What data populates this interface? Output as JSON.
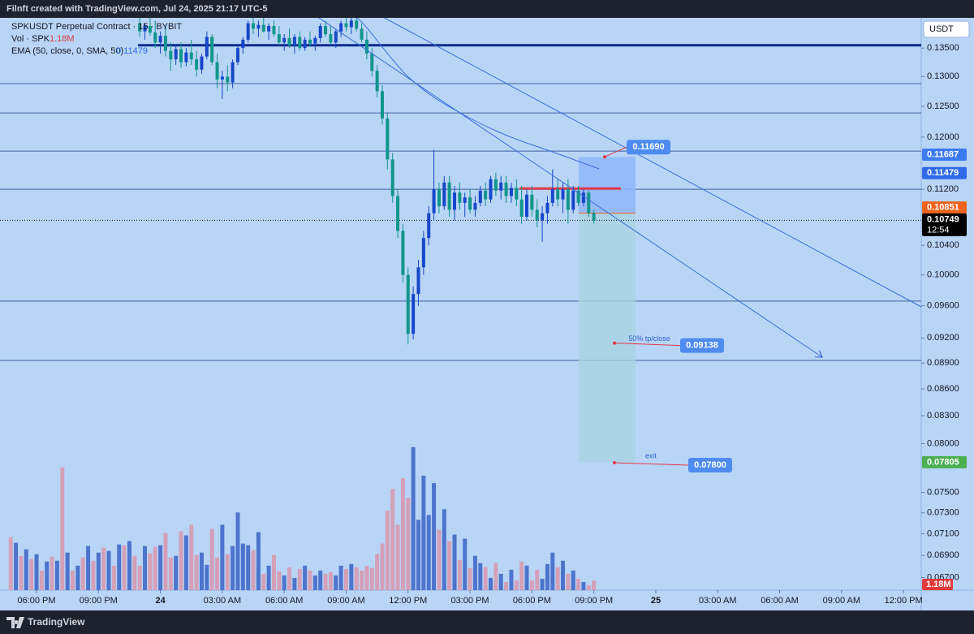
{
  "header": "Filnft created with TradingView.com, Jul 24, 2025 21:17 UTC-5",
  "chart_data": {
    "type": "candlestick",
    "title": "SPKUSDT Perpetual Contract · 15 · BYBIT",
    "legend": {
      "volume_label": "Vol · SPK",
      "volume_value": "1.18M",
      "ema_label": "EMA (50, close, 0, SMA, 50)"
    },
    "currency": "USDT",
    "log_scale": true,
    "x": [
      -1.25,
      -1,
      -0.75,
      -0.5,
      -0.25,
      0,
      0.25,
      0.5,
      0.75,
      1,
      1.25,
      1.5,
      1.75,
      2,
      2.25,
      2.5,
      2.75,
      3,
      3.25,
      3.5,
      3.75,
      4,
      4.25,
      4.5,
      4.75,
      5,
      5.25,
      5.5,
      5.75,
      6,
      6.25,
      6.5,
      6.75,
      7,
      7.25,
      7.5,
      7.75,
      8,
      8.25,
      8.5,
      8.75,
      9,
      9.25,
      9.5,
      9.75,
      10,
      10.25,
      10.5,
      10.75,
      11,
      11.25,
      11.5,
      11.75,
      12,
      12.25,
      12.5,
      12.75,
      13,
      13.25,
      13.5,
      13.75,
      14,
      14.25,
      14.5,
      14.75,
      15,
      15.25,
      15.5,
      15.75,
      16,
      16.25,
      16.5,
      16.75,
      17,
      17.25,
      17.5,
      17.75,
      18,
      18.25,
      18.5,
      18.75,
      19,
      19.25,
      19.5,
      19.75,
      20,
      20.25,
      20.5,
      20.75,
      21,
      21.25,
      21.5,
      21.75,
      22,
      22.25,
      22.5,
      22.75,
      23,
      23.25,
      23.5,
      23.75,
      24,
      24.25,
      24.5,
      24.75,
      25,
      25.25,
      25.5,
      25.75,
      26,
      26.25,
      26.5,
      26.75,
      27
    ],
    "ohlc": [
      null,
      null,
      null,
      null,
      null,
      null,
      null,
      null,
      null,
      null,
      null,
      null,
      null,
      null,
      null,
      null,
      null,
      null,
      null,
      null,
      null,
      null,
      null,
      null,
      null,
      [
        0.1395,
        0.141,
        0.137,
        0.138
      ],
      [
        0.138,
        0.1395,
        0.1365,
        0.139
      ],
      [
        0.139,
        0.1405,
        0.1372,
        0.1378
      ],
      [
        0.1378,
        0.14,
        0.135,
        0.136
      ],
      [
        0.136,
        0.138,
        0.134,
        0.1372
      ],
      [
        0.1372,
        0.139,
        0.1335,
        0.1345
      ],
      [
        0.1345,
        0.136,
        0.131,
        0.133
      ],
      [
        0.133,
        0.1355,
        0.132,
        0.1348
      ],
      [
        0.1348,
        0.136,
        0.1315,
        0.1325
      ],
      [
        0.1325,
        0.135,
        0.1318,
        0.1342
      ],
      [
        0.1342,
        0.1365,
        0.132,
        0.133
      ],
      [
        0.133,
        0.1345,
        0.13,
        0.1312
      ],
      [
        0.1312,
        0.134,
        0.1305,
        0.1335
      ],
      [
        0.1335,
        0.138,
        0.133,
        0.137
      ],
      [
        0.137,
        0.1375,
        0.132,
        0.1325
      ],
      [
        0.1325,
        0.134,
        0.128,
        0.1295
      ],
      [
        0.1295,
        0.131,
        0.1262,
        0.13
      ],
      [
        0.13,
        0.132,
        0.1275,
        0.129
      ],
      [
        0.129,
        0.133,
        0.128,
        0.1325
      ],
      [
        0.1325,
        0.1355,
        0.132,
        0.135
      ],
      [
        0.135,
        0.137,
        0.134,
        0.1365
      ],
      [
        0.1365,
        0.14,
        0.136,
        0.1395
      ],
      [
        0.1395,
        0.141,
        0.1375,
        0.1385
      ],
      [
        0.1385,
        0.14,
        0.137,
        0.1392
      ],
      [
        0.1392,
        0.1405,
        0.1378,
        0.138
      ],
      [
        0.138,
        0.1395,
        0.1365,
        0.139
      ],
      [
        0.139,
        0.14,
        0.137,
        0.1375
      ],
      [
        0.1375,
        0.139,
        0.1355,
        0.136
      ],
      [
        0.136,
        0.1375,
        0.1345,
        0.1368
      ],
      [
        0.1368,
        0.1385,
        0.135,
        0.1355
      ],
      [
        0.1355,
        0.1375,
        0.134,
        0.137
      ],
      [
        0.137,
        0.138,
        0.1345,
        0.135
      ],
      [
        0.135,
        0.137,
        0.1345,
        0.1365
      ],
      [
        0.1365,
        0.138,
        0.1352,
        0.1358
      ],
      [
        0.1358,
        0.1372,
        0.1345,
        0.1368
      ],
      [
        0.1368,
        0.1395,
        0.136,
        0.139
      ],
      [
        0.139,
        0.14,
        0.137,
        0.1375
      ],
      [
        0.1375,
        0.139,
        0.1355,
        0.136
      ],
      [
        0.136,
        0.1385,
        0.135,
        0.138
      ],
      [
        0.138,
        0.14,
        0.137,
        0.1395
      ],
      [
        0.1395,
        0.141,
        0.138,
        0.1388
      ],
      [
        0.1388,
        0.1408,
        0.1375,
        0.14
      ],
      [
        0.14,
        0.141,
        0.138,
        0.1385
      ],
      [
        0.1385,
        0.1395,
        0.136,
        0.1365
      ],
      [
        0.1365,
        0.138,
        0.133,
        0.134
      ],
      [
        0.134,
        0.135,
        0.13,
        0.131
      ],
      [
        0.131,
        0.132,
        0.1265,
        0.1275
      ],
      [
        0.1275,
        0.1285,
        0.122,
        0.123
      ],
      [
        0.123,
        0.124,
        0.115,
        0.1165
      ],
      [
        0.1165,
        0.1175,
        0.11,
        0.111
      ],
      [
        0.111,
        0.112,
        0.105,
        0.106
      ],
      [
        0.106,
        0.107,
        0.099,
        0.1
      ],
      [
        0.1,
        0.101,
        0.0912,
        0.0925
      ],
      [
        0.0925,
        0.0985,
        0.0918,
        0.0975
      ],
      [
        0.0975,
        0.102,
        0.096,
        0.101
      ],
      [
        0.101,
        0.106,
        0.1,
        0.105
      ],
      [
        0.105,
        0.1095,
        0.104,
        0.1085
      ],
      [
        0.1085,
        0.118,
        0.1075,
        0.112
      ],
      [
        0.112,
        0.113,
        0.1085,
        0.1095
      ],
      [
        0.1095,
        0.114,
        0.109,
        0.113
      ],
      [
        0.113,
        0.114,
        0.108,
        0.109
      ],
      [
        0.109,
        0.1125,
        0.1075,
        0.1115
      ],
      [
        0.1115,
        0.113,
        0.109,
        0.11
      ],
      [
        0.11,
        0.1115,
        0.108,
        0.1108
      ],
      [
        0.1108,
        0.112,
        0.1085,
        0.109
      ],
      [
        0.109,
        0.111,
        0.108,
        0.11
      ],
      [
        0.11,
        0.1125,
        0.1095,
        0.1118
      ],
      [
        0.1118,
        0.113,
        0.1095,
        0.1105
      ],
      [
        0.1105,
        0.114,
        0.11,
        0.1135
      ],
      [
        0.1135,
        0.1145,
        0.111,
        0.1118
      ],
      [
        0.1118,
        0.114,
        0.1105,
        0.113
      ],
      [
        0.113,
        0.114,
        0.11,
        0.111
      ],
      [
        0.111,
        0.113,
        0.11,
        0.1122
      ],
      [
        0.1122,
        0.1135,
        0.1095,
        0.1105
      ],
      [
        0.1105,
        0.1125,
        0.107,
        0.108
      ],
      [
        0.108,
        0.112,
        0.1075,
        0.1112
      ],
      [
        0.1112,
        0.1125,
        0.108,
        0.109
      ],
      [
        0.109,
        0.1105,
        0.1065,
        0.1075
      ],
      [
        0.1075,
        0.1095,
        0.1045,
        0.1085
      ],
      [
        0.1085,
        0.111,
        0.107,
        0.11
      ],
      [
        0.11,
        0.115,
        0.1095,
        0.112
      ],
      [
        0.112,
        0.1135,
        0.1095,
        0.1105
      ],
      [
        0.1105,
        0.113,
        0.1085,
        0.112
      ],
      [
        0.112,
        0.1135,
        0.107,
        0.109
      ],
      [
        0.109,
        0.1125,
        0.1085,
        0.1118
      ],
      [
        0.1118,
        0.1125,
        0.1095,
        0.11
      ],
      [
        0.11,
        0.112,
        0.1095,
        0.1115
      ],
      [
        0.1115,
        0.1118,
        0.108,
        0.1085
      ],
      [
        0.1085,
        0.109,
        0.107,
        0.10749
      ]
    ],
    "volume": [
      6.5,
      5.8,
      4.2,
      5.0,
      3.8,
      4.4,
      2.4,
      3.5,
      4.1,
      3.6,
      15.0,
      4.6,
      2.4,
      3.0,
      4.0,
      5.4,
      3.6,
      4.6,
      5.2,
      4.8,
      3.0,
      5.6,
      5.5,
      6.0,
      4.2,
      3.0,
      5.4,
      4.5,
      5.3,
      5.5,
      7.0,
      4.0,
      4.2,
      7.2,
      6.7,
      8.0,
      4.3,
      4.6,
      3.1,
      7.5,
      4.0,
      8.0,
      4.4,
      5.4,
      9.5,
      5.7,
      5.5,
      4.9,
      7.1,
      2.0,
      3.0,
      4.3,
      2.3,
      1.8,
      2.8,
      1.5,
      2.6,
      3.0,
      2.4,
      1.8,
      2.4,
      2.0,
      2.2,
      1.8,
      3.0,
      2.6,
      3.2,
      2.8,
      2.4,
      3.0,
      2.7,
      4.4,
      5.7,
      9.7,
      12.4,
      8.0,
      13.7,
      11.3,
      17.5,
      8.6,
      14.0,
      9.2,
      13.1,
      7.4,
      9.9,
      6.0,
      6.8,
      3.7,
      6.3,
      2.7,
      4.2,
      3.3,
      2.8,
      1.5,
      3.3,
      2.0,
      1.0,
      2.5,
      1.2,
      3.5,
      3.0,
      1.2,
      2.5,
      1.4,
      3.2,
      4.6,
      2.8,
      3.6,
      2.0,
      2.4,
      1.4,
      1.0,
      0.6,
      1.18
    ],
    "xlim": [
      -1.77,
      42.86
    ],
    "xticks": [
      {
        "value": 0,
        "label": "06:00 PM"
      },
      {
        "value": 3,
        "label": "09:00 PM"
      },
      {
        "value": 6,
        "label": "24"
      },
      {
        "value": 9,
        "label": "03:00 AM"
      },
      {
        "value": 12,
        "label": "06:00 AM"
      },
      {
        "value": 15,
        "label": "09:00 AM"
      },
      {
        "value": 18,
        "label": "12:00 PM"
      },
      {
        "value": 21,
        "label": "03:00 PM"
      },
      {
        "value": 24,
        "label": "06:00 PM"
      },
      {
        "value": 27,
        "label": "09:00 PM"
      },
      {
        "value": 30,
        "label": "25"
      },
      {
        "value": 33,
        "label": "03:00 AM"
      },
      {
        "value": 36,
        "label": "06:00 AM"
      },
      {
        "value": 39,
        "label": "09:00 AM"
      },
      {
        "value": 42,
        "label": "12:00 PM"
      }
    ],
    "ylim": [
      0.0659,
      0.1405
    ],
    "yticks": [
      {
        "value": 0.135,
        "label": "0.13500"
      },
      {
        "value": 0.13,
        "label": "0.13000"
      },
      {
        "value": 0.125,
        "label": "0.12500"
      },
      {
        "value": 0.12,
        "label": "0.12000"
      },
      {
        "value": 0.112,
        "label": "0.11200"
      },
      {
        "value": 0.104,
        "label": "0.10400"
      },
      {
        "value": 0.1,
        "label": "0.10000"
      },
      {
        "value": 0.096,
        "label": "0.09600"
      },
      {
        "value": 0.092,
        "label": "0.09200"
      },
      {
        "value": 0.089,
        "label": "0.08900"
      },
      {
        "value": 0.086,
        "label": "0.08600"
      },
      {
        "value": 0.083,
        "label": "0.08300"
      },
      {
        "value": 0.08,
        "label": "0.08000"
      },
      {
        "value": 0.075,
        "label": "0.07500"
      },
      {
        "value": 0.073,
        "label": "0.07300"
      },
      {
        "value": 0.071,
        "label": "0.07100"
      },
      {
        "value": 0.069,
        "label": "0.06900"
      },
      {
        "value": 0.067,
        "label": "0.06700"
      }
    ],
    "volume_ylim": [
      0,
      70
    ],
    "colors": {
      "up": "#1747c9",
      "down": "#11958a",
      "volume_up": "#4d74cc",
      "volume_down": "#d4a0b8"
    },
    "key_level": 0.1355,
    "levels": [
      0.1288,
      0.1239,
      0.1178,
      0.112,
      0.0966,
      0.0893
    ],
    "entry_line": 0.1121,
    "price_badges": [
      {
        "value": 0.11687,
        "label": "0.11687",
        "color": "#3d7bf5"
      },
      {
        "value": 0.11479,
        "label": "0.11479",
        "color": "#2f6ae8"
      },
      {
        "value": 0.10851,
        "label": "0.10851",
        "color": "#f0641e"
      },
      {
        "value": 0.10749,
        "label": "0.10749",
        "color": "#000000"
      },
      {
        "value": 0.07805,
        "label": "0.07805",
        "color": "#4caf50"
      }
    ],
    "countdown": "12:54",
    "annotations": [
      {
        "value": 0.1169,
        "label": "0.11690"
      },
      {
        "value": 0.09138,
        "label": "0.09138",
        "text": "50% tp/close"
      },
      {
        "value": 0.078,
        "label": "0.07800",
        "text": "exit"
      }
    ]
  },
  "footer": "TradingView"
}
